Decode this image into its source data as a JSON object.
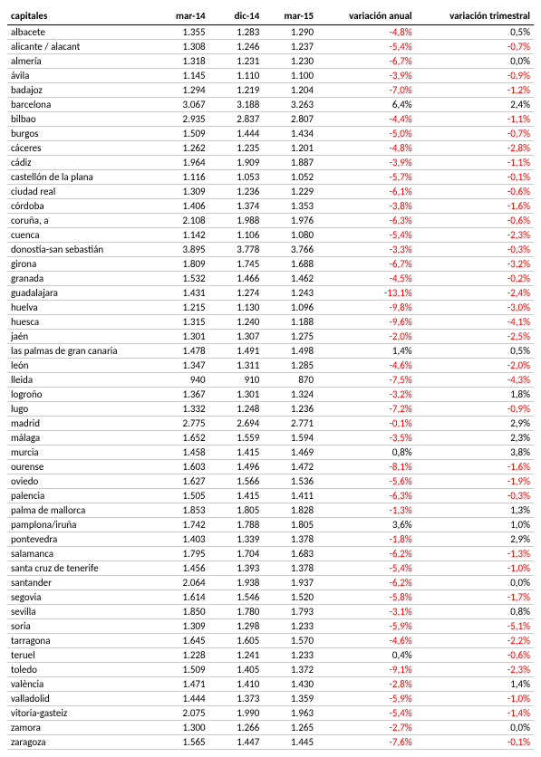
{
  "table": {
    "type": "table",
    "background_color": "#ffffff",
    "border_color": "#cccccc",
    "header_border_color": "#000000",
    "text_color": "#000000",
    "negative_color": "#ff0000",
    "font_family": "Calibri",
    "font_size_pt": 8,
    "columns": [
      {
        "key": "capital",
        "label": "capitales",
        "align": "left"
      },
      {
        "key": "mar14",
        "label": "mar-14",
        "align": "right"
      },
      {
        "key": "dic14",
        "label": "dic-14",
        "align": "right"
      },
      {
        "key": "mar15",
        "label": "mar-15",
        "align": "right"
      },
      {
        "key": "var_anual",
        "label": "variación anual",
        "align": "right"
      },
      {
        "key": "var_trim",
        "label": "variación trimestral",
        "align": "right"
      }
    ],
    "rows": [
      {
        "capital": "albacete",
        "mar14": "1.355",
        "dic14": "1.283",
        "mar15": "1.290",
        "var_anual": "-4,8%",
        "var_trim": "0,5%"
      },
      {
        "capital": "alicante / alacant",
        "mar14": "1.308",
        "dic14": "1.246",
        "mar15": "1.237",
        "var_anual": "-5,4%",
        "var_trim": "-0,7%"
      },
      {
        "capital": "almería",
        "mar14": "1.318",
        "dic14": "1.231",
        "mar15": "1.230",
        "var_anual": "-6,7%",
        "var_trim": "0,0%"
      },
      {
        "capital": "ávila",
        "mar14": "1.145",
        "dic14": "1.110",
        "mar15": "1.100",
        "var_anual": "-3,9%",
        "var_trim": "-0,9%"
      },
      {
        "capital": "badajoz",
        "mar14": "1.294",
        "dic14": "1.219",
        "mar15": "1.204",
        "var_anual": "-7,0%",
        "var_trim": "-1,2%"
      },
      {
        "capital": "barcelona",
        "mar14": "3.067",
        "dic14": "3.188",
        "mar15": "3.263",
        "var_anual": "6,4%",
        "var_trim": "2,4%"
      },
      {
        "capital": "bilbao",
        "mar14": "2.935",
        "dic14": "2.837",
        "mar15": "2.807",
        "var_anual": "-4,4%",
        "var_trim": "-1,1%"
      },
      {
        "capital": "burgos",
        "mar14": "1.509",
        "dic14": "1.444",
        "mar15": "1.434",
        "var_anual": "-5,0%",
        "var_trim": "-0,7%"
      },
      {
        "capital": "cáceres",
        "mar14": "1.262",
        "dic14": "1.235",
        "mar15": "1.201",
        "var_anual": "-4,8%",
        "var_trim": "-2,8%"
      },
      {
        "capital": "cádiz",
        "mar14": "1.964",
        "dic14": "1.909",
        "mar15": "1.887",
        "var_anual": "-3,9%",
        "var_trim": "-1,1%"
      },
      {
        "capital": "castellón de la plana",
        "mar14": "1.116",
        "dic14": "1.053",
        "mar15": "1.052",
        "var_anual": "-5,7%",
        "var_trim": "-0,1%"
      },
      {
        "capital": "ciudad real",
        "mar14": "1.309",
        "dic14": "1.236",
        "mar15": "1.229",
        "var_anual": "-6,1%",
        "var_trim": "-0,6%"
      },
      {
        "capital": "córdoba",
        "mar14": "1.406",
        "dic14": "1.374",
        "mar15": "1.353",
        "var_anual": "-3,8%",
        "var_trim": "-1,6%"
      },
      {
        "capital": "coruña, a",
        "mar14": "2.108",
        "dic14": "1.988",
        "mar15": "1.976",
        "var_anual": "-6,3%",
        "var_trim": "-0,6%"
      },
      {
        "capital": "cuenca",
        "mar14": "1.142",
        "dic14": "1.106",
        "mar15": "1.080",
        "var_anual": "-5,4%",
        "var_trim": "-2,3%"
      },
      {
        "capital": "donostia-san sebastián",
        "mar14": "3.895",
        "dic14": "3.778",
        "mar15": "3.766",
        "var_anual": "-3,3%",
        "var_trim": "-0,3%"
      },
      {
        "capital": "girona",
        "mar14": "1.809",
        "dic14": "1.745",
        "mar15": "1.688",
        "var_anual": "-6,7%",
        "var_trim": "-3,2%"
      },
      {
        "capital": "granada",
        "mar14": "1.532",
        "dic14": "1.466",
        "mar15": "1.462",
        "var_anual": "-4,5%",
        "var_trim": "-0,2%"
      },
      {
        "capital": "guadalajara",
        "mar14": "1.431",
        "dic14": "1.274",
        "mar15": "1.243",
        "var_anual": "-13,1%",
        "var_trim": "-2,4%"
      },
      {
        "capital": "huelva",
        "mar14": "1.215",
        "dic14": "1.130",
        "mar15": "1.096",
        "var_anual": "-9,8%",
        "var_trim": "-3,0%"
      },
      {
        "capital": "huesca",
        "mar14": "1.315",
        "dic14": "1.240",
        "mar15": "1.188",
        "var_anual": "-9,6%",
        "var_trim": "-4,1%"
      },
      {
        "capital": "jaén",
        "mar14": "1.301",
        "dic14": "1.307",
        "mar15": "1.275",
        "var_anual": "-2,0%",
        "var_trim": "-2,5%"
      },
      {
        "capital": "las palmas de gran canaria",
        "mar14": "1.478",
        "dic14": "1.491",
        "mar15": "1.498",
        "var_anual": "1,4%",
        "var_trim": "0,5%"
      },
      {
        "capital": "león",
        "mar14": "1.347",
        "dic14": "1.311",
        "mar15": "1.285",
        "var_anual": "-4,6%",
        "var_trim": "-2,0%"
      },
      {
        "capital": "lleida",
        "mar14": "940",
        "dic14": "910",
        "mar15": "870",
        "var_anual": "-7,5%",
        "var_trim": "-4,3%"
      },
      {
        "capital": "logroño",
        "mar14": "1.367",
        "dic14": "1.301",
        "mar15": "1.324",
        "var_anual": "-3,2%",
        "var_trim": "1,8%"
      },
      {
        "capital": "lugo",
        "mar14": "1.332",
        "dic14": "1.248",
        "mar15": "1.236",
        "var_anual": "-7,2%",
        "var_trim": "-0,9%"
      },
      {
        "capital": "madrid",
        "mar14": "2.775",
        "dic14": "2.694",
        "mar15": "2.771",
        "var_anual": "-0,1%",
        "var_trim": "2,9%"
      },
      {
        "capital": "málaga",
        "mar14": "1.652",
        "dic14": "1.559",
        "mar15": "1.594",
        "var_anual": "-3,5%",
        "var_trim": "2,3%"
      },
      {
        "capital": "murcia",
        "mar14": "1.458",
        "dic14": "1.415",
        "mar15": "1.469",
        "var_anual": "0,8%",
        "var_trim": "3,8%"
      },
      {
        "capital": "ourense",
        "mar14": "1.603",
        "dic14": "1.496",
        "mar15": "1.472",
        "var_anual": "-8,1%",
        "var_trim": "-1,6%"
      },
      {
        "capital": "oviedo",
        "mar14": "1.627",
        "dic14": "1.566",
        "mar15": "1.536",
        "var_anual": "-5,6%",
        "var_trim": "-1,9%"
      },
      {
        "capital": "palencia",
        "mar14": "1.505",
        "dic14": "1.415",
        "mar15": "1.411",
        "var_anual": "-6,3%",
        "var_trim": "-0,3%"
      },
      {
        "capital": "palma de mallorca",
        "mar14": "1.853",
        "dic14": "1.805",
        "mar15": "1.828",
        "var_anual": "-1,3%",
        "var_trim": "1,3%"
      },
      {
        "capital": "pamplona/iruña",
        "mar14": "1.742",
        "dic14": "1.788",
        "mar15": "1.805",
        "var_anual": "3,6%",
        "var_trim": "1,0%"
      },
      {
        "capital": "pontevedra",
        "mar14": "1.403",
        "dic14": "1.339",
        "mar15": "1.378",
        "var_anual": "-1,8%",
        "var_trim": "2,9%"
      },
      {
        "capital": "salamanca",
        "mar14": "1.795",
        "dic14": "1.704",
        "mar15": "1.683",
        "var_anual": "-6,2%",
        "var_trim": "-1,3%"
      },
      {
        "capital": "santa cruz de tenerife",
        "mar14": "1.456",
        "dic14": "1.393",
        "mar15": "1.378",
        "var_anual": "-5,4%",
        "var_trim": "-1,0%"
      },
      {
        "capital": "santander",
        "mar14": "2.064",
        "dic14": "1.938",
        "mar15": "1.937",
        "var_anual": "-6,2%",
        "var_trim": "0,0%"
      },
      {
        "capital": "segovia",
        "mar14": "1.614",
        "dic14": "1.546",
        "mar15": "1.520",
        "var_anual": "-5,8%",
        "var_trim": "-1,7%"
      },
      {
        "capital": "sevilla",
        "mar14": "1.850",
        "dic14": "1.780",
        "mar15": "1.793",
        "var_anual": "-3,1%",
        "var_trim": "0,8%"
      },
      {
        "capital": "soria",
        "mar14": "1.309",
        "dic14": "1.298",
        "mar15": "1.233",
        "var_anual": "-5,9%",
        "var_trim": "-5,1%"
      },
      {
        "capital": "tarragona",
        "mar14": "1.645",
        "dic14": "1.605",
        "mar15": "1.570",
        "var_anual": "-4,6%",
        "var_trim": "-2,2%"
      },
      {
        "capital": "teruel",
        "mar14": "1.228",
        "dic14": "1.241",
        "mar15": "1.233",
        "var_anual": "0,4%",
        "var_trim": "-0,6%"
      },
      {
        "capital": "toledo",
        "mar14": "1.509",
        "dic14": "1.405",
        "mar15": "1.372",
        "var_anual": "-9,1%",
        "var_trim": "-2,3%"
      },
      {
        "capital": "valència",
        "mar14": "1.471",
        "dic14": "1.410",
        "mar15": "1.430",
        "var_anual": "-2,8%",
        "var_trim": "1,4%"
      },
      {
        "capital": "valladolid",
        "mar14": "1.444",
        "dic14": "1.373",
        "mar15": "1.359",
        "var_anual": "-5,9%",
        "var_trim": "-1,0%"
      },
      {
        "capital": "vitoria-gasteiz",
        "mar14": "2.075",
        "dic14": "1.990",
        "mar15": "1.963",
        "var_anual": "-5,4%",
        "var_trim": "-1,4%"
      },
      {
        "capital": "zamora",
        "mar14": "1.300",
        "dic14": "1.266",
        "mar15": "1.265",
        "var_anual": "-2,7%",
        "var_trim": "0,0%"
      },
      {
        "capital": "zaragoza",
        "mar14": "1.565",
        "dic14": "1.447",
        "mar15": "1.445",
        "var_anual": "-7,6%",
        "var_trim": "-0,1%"
      }
    ]
  }
}
